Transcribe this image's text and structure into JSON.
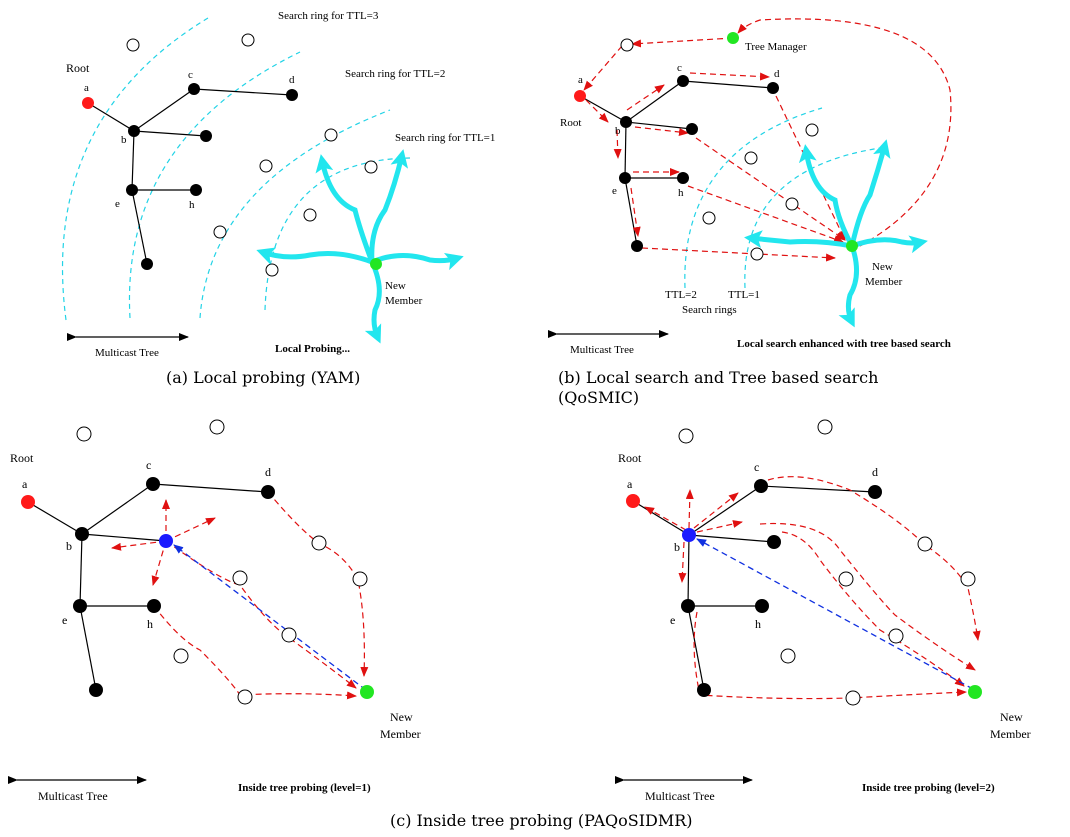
{
  "panel_a": {
    "labels": {
      "root": "Root",
      "a": "a",
      "b": "b",
      "c": "c",
      "d": "d",
      "e": "e",
      "h": "h"
    },
    "ring_ttl3": "Search ring for TTL=3",
    "ring_ttl2": "Search ring for TTL=2",
    "ring_ttl1": "Search ring for TTL=1",
    "new_member_1": "New",
    "new_member_2": "Member",
    "multicast_tree": "Multicast Tree",
    "action": "Local Probing...",
    "caption": "(a) Local probing (YAM)"
  },
  "panel_b": {
    "labels": {
      "root": "Root",
      "a": "a",
      "b": "b",
      "c": "c",
      "d": "d",
      "e": "e",
      "h": "h"
    },
    "tree_manager": "Tree Manager",
    "ttl2": "TTL=2",
    "ttl1": "TTL=1",
    "search_rings": "Search rings",
    "new_member_1": "New",
    "new_member_2": "Member",
    "multicast_tree": "Multicast Tree",
    "action": "Local search enhanced with tree based search",
    "caption_1": "(b)  Local  search  and  Tree  based  search",
    "caption_2": "(QoSMIC)"
  },
  "panel_c1": {
    "labels": {
      "root": "Root",
      "a": "a",
      "b": "b",
      "c": "c",
      "d": "d",
      "e": "e",
      "h": "h"
    },
    "new_member_1": "New",
    "new_member_2": "Member",
    "multicast_tree": "Multicast Tree",
    "action": "Inside tree probing (level=1)"
  },
  "panel_c2": {
    "labels": {
      "root": "Root",
      "a": "a",
      "b": "b",
      "c": "c",
      "d": "d",
      "e": "e",
      "h": "h"
    },
    "new_member_1": "New",
    "new_member_2": "Member",
    "multicast_tree": "Multicast Tree",
    "action": "Inside tree probing (level=2)"
  },
  "caption_c": "(c) Inside tree probing (PAQoSIDMR)",
  "colors": {
    "root_node": "#ff1a1a",
    "new_member": "#22e622",
    "probing_node": "#1a1aff",
    "probe_path": "#e01010",
    "search_ring": "#22d3e6",
    "probe_arrows": "#22e6ee"
  }
}
